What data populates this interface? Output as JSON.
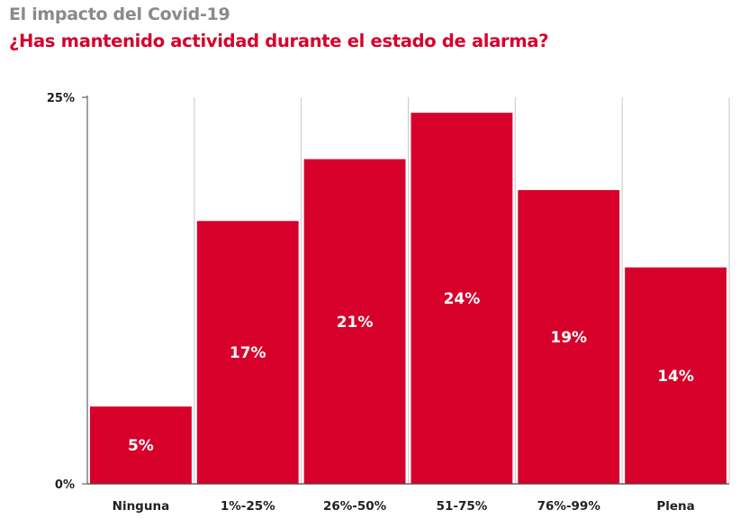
{
  "header": {
    "title": "El impacto del Covid-19",
    "subtitle": "¿Has mantenido actividad durante el estado de alarma?"
  },
  "colors": {
    "bar": "#d6002a",
    "title": "#8a8a8a",
    "subtitle": "#d6002a",
    "grid": "#c8c8c8",
    "axis": "#444444"
  },
  "chart_data": {
    "type": "bar",
    "title": "El impacto del Covid-19",
    "subtitle": "¿Has mantenido actividad durante el estado de alarma?",
    "xlabel": "",
    "ylabel": "",
    "categories": [
      "Ninguna",
      "1%-25%",
      "26%-50%",
      "51-75%",
      "76%-99%",
      "Plena"
    ],
    "values": [
      5,
      17,
      21,
      24,
      19,
      14
    ],
    "data_labels": [
      "5%",
      "17%",
      "21%",
      "24%",
      "19%",
      "14%"
    ],
    "ylim": [
      0,
      25
    ],
    "yticks": [
      0,
      25
    ],
    "ytick_labels": [
      "0%",
      "25%"
    ],
    "grid": "vertical category separators",
    "legend": "none"
  }
}
